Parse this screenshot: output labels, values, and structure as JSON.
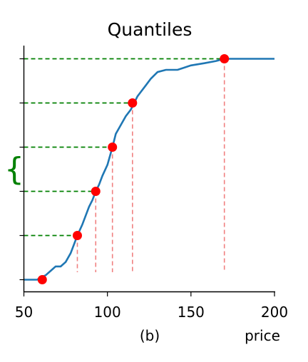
{
  "chart_data": {
    "type": "line",
    "title": "Quantiles",
    "xlabel": "price",
    "caption": "(b)",
    "xlim": [
      50,
      200
    ],
    "ylim": [
      -0.05,
      1.05
    ],
    "x_ticks": [
      50,
      100,
      150,
      200
    ],
    "x_tick_labels": [
      "50",
      "100",
      "150",
      "200"
    ],
    "y_ticks": [
      0,
      0.2,
      0.4,
      0.6,
      0.8,
      1.0
    ],
    "y_tick_labels": [],
    "brace_symbol": "{",
    "colors": {
      "cdf_line": "#1f77b4",
      "quantile_points": "#ff0000",
      "horizontal_guides": "#008000",
      "vertical_guides": "#f08080",
      "brace": "#008000"
    },
    "series": [
      {
        "values": [
          [
            50,
            0.0
          ],
          [
            58,
            0.0
          ],
          [
            60,
            0.01
          ],
          [
            63,
            0.02
          ],
          [
            66,
            0.04
          ],
          [
            69,
            0.06
          ],
          [
            72,
            0.06
          ],
          [
            75,
            0.08
          ],
          [
            78,
            0.12
          ],
          [
            80,
            0.16
          ],
          [
            82,
            0.2
          ],
          [
            85,
            0.25
          ],
          [
            87,
            0.29
          ],
          [
            89,
            0.33
          ],
          [
            91,
            0.36
          ],
          [
            93,
            0.4
          ],
          [
            95,
            0.43
          ],
          [
            97,
            0.47
          ],
          [
            100,
            0.52
          ],
          [
            103,
            0.6
          ],
          [
            105,
            0.66
          ],
          [
            108,
            0.7
          ],
          [
            111,
            0.74
          ],
          [
            114,
            0.77
          ],
          [
            116,
            0.8
          ],
          [
            118,
            0.83
          ],
          [
            120,
            0.85
          ],
          [
            123,
            0.88
          ],
          [
            126,
            0.91
          ],
          [
            130,
            0.94
          ],
          [
            135,
            0.95
          ],
          [
            142,
            0.95
          ],
          [
            150,
            0.97
          ],
          [
            158,
            0.98
          ],
          [
            165,
            0.99
          ],
          [
            170,
            1.0
          ],
          [
            200,
            1.0
          ]
        ]
      }
    ],
    "quantile_points": [
      {
        "x": 61,
        "y": 0.0
      },
      {
        "x": 82,
        "y": 0.2
      },
      {
        "x": 93,
        "y": 0.4
      },
      {
        "x": 103,
        "y": 0.6
      },
      {
        "x": 115,
        "y": 0.8
      },
      {
        "x": 170,
        "y": 1.0
      }
    ]
  }
}
